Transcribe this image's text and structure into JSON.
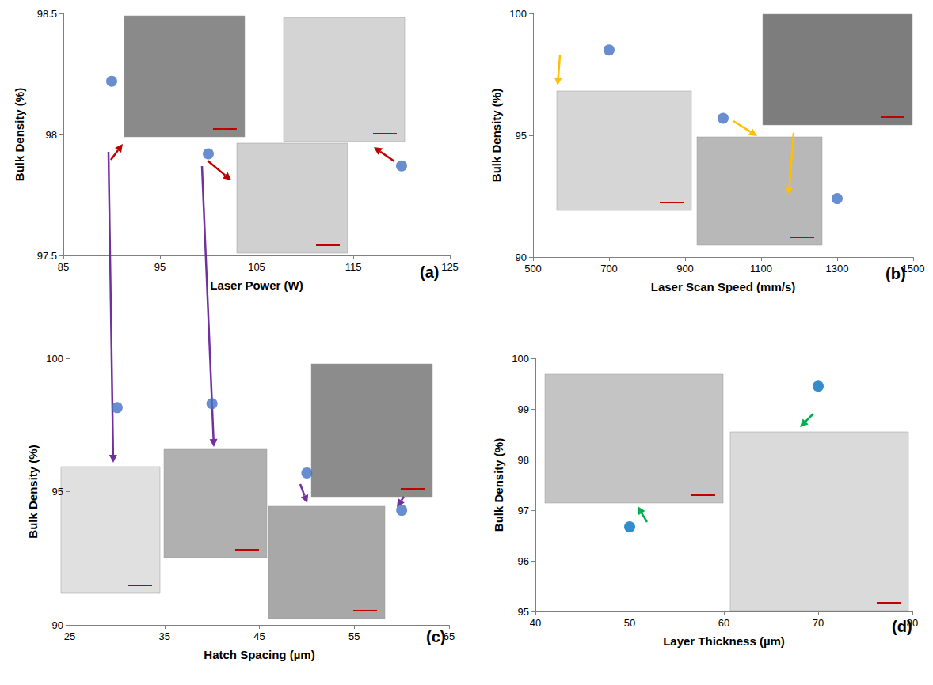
{
  "chart_data": [
    {
      "type": "scatter",
      "title": "(a)",
      "x_label": "Laser Power (W)",
      "y_label": "Bulk Density (%)",
      "x": [
        90,
        100,
        120
      ],
      "values": [
        98.22,
        97.92,
        97.87
      ],
      "color": "#4472c4",
      "marker": "circle",
      "xlim": [
        85,
        125
      ],
      "xticks": [
        85,
        95,
        105,
        115,
        125
      ],
      "ylim": [
        97.5,
        98.5
      ],
      "yticks": [
        97.5,
        98,
        98.5
      ],
      "grid": false
    },
    {
      "type": "scatter",
      "title": "(b)",
      "x_label": "Laser Scan Speed (mm/s)",
      "y_label": "Bulk Density (%)",
      "x": [
        700,
        1000,
        1300
      ],
      "values": [
        98.5,
        95.7,
        92.4
      ],
      "color": "#4472c4",
      "marker": "circle",
      "xlim": [
        500,
        1500
      ],
      "xticks": [
        500,
        700,
        900,
        1100,
        1300,
        1500
      ],
      "ylim": [
        90,
        100
      ],
      "yticks": [
        90,
        95,
        100
      ],
      "grid": false
    },
    {
      "type": "scatter",
      "title": "(c)",
      "x_label": "Hatch Spacing (µm)",
      "y_label": "Bulk Density (%)",
      "x": [
        30,
        40,
        50,
        60
      ],
      "values": [
        98.15,
        98.3,
        95.7,
        94.3
      ],
      "color": "#4472c4",
      "marker": "circle",
      "xlim": [
        25,
        65
      ],
      "xticks": [
        25,
        35,
        45,
        55,
        65
      ],
      "ylim": [
        90,
        100
      ],
      "yticks": [
        90,
        95,
        100
      ],
      "grid": false
    },
    {
      "type": "scatter",
      "title": "(d)",
      "x_label": "Layer Thickness (µm)",
      "y_label": "Bulk Density (%)",
      "x": [
        50,
        70
      ],
      "values": [
        96.67,
        99.45
      ],
      "color": "#0070c0",
      "marker": "circle",
      "xlim": [
        40,
        80
      ],
      "xticks": [
        40,
        50,
        60,
        70,
        80
      ],
      "ylim": [
        95,
        100
      ],
      "yticks": [
        95,
        96,
        97,
        98,
        99,
        100
      ],
      "grid": false
    }
  ]
}
